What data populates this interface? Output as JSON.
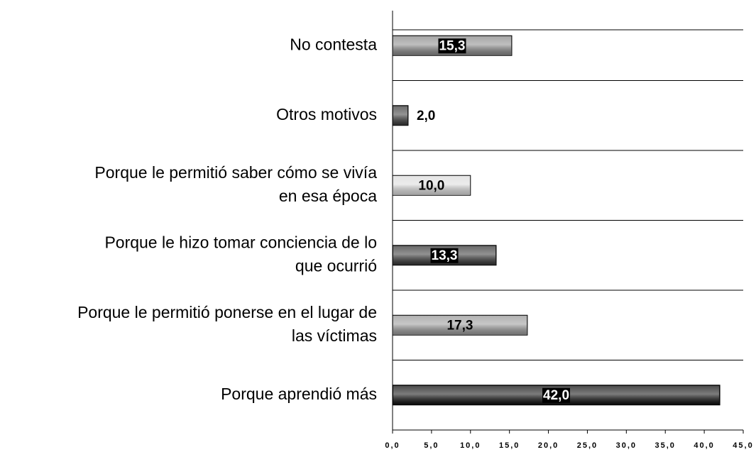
{
  "chart_data": {
    "type": "bar",
    "orientation": "horizontal",
    "categories": [
      [
        "No contesta"
      ],
      [
        "Otros motivos"
      ],
      [
        "Porque le permitió saber cómo se vivía",
        "en esa época"
      ],
      [
        "Porque le hizo tomar conciencia de lo",
        "que ocurrió"
      ],
      [
        "Porque le permitió ponerse en el lugar de",
        "las víctimas"
      ],
      [
        "Porque aprendió más"
      ]
    ],
    "values": [
      15.3,
      2.0,
      10.0,
      13.3,
      17.3,
      42.0
    ],
    "value_labels": [
      "15,3",
      "2,0",
      "10,0",
      "13,3",
      "17,3",
      "42,0"
    ],
    "colors": [
      "#8a8a8a",
      "#3c3c3c",
      "#dcdcdc",
      "#383838",
      "#9a9a9a",
      "#111111"
    ],
    "value_label_colors": [
      "#ffffff",
      "#000000",
      "#000000",
      "#ffffff",
      "#000000",
      "#ffffff"
    ],
    "xlim": [
      0,
      45
    ],
    "xticks": [
      {
        "value": 0,
        "label": "0,0"
      },
      {
        "value": 5,
        "label": "5,0"
      },
      {
        "value": 10,
        "label": "10,0"
      },
      {
        "value": 15,
        "label": "15,0"
      },
      {
        "value": 20,
        "label": "20,0"
      },
      {
        "value": 25,
        "label": "25,0"
      },
      {
        "value": 30,
        "label": "30,0"
      },
      {
        "value": 35,
        "label": "35,0"
      },
      {
        "value": 40,
        "label": "40,0"
      },
      {
        "value": 45,
        "label": "45,0"
      }
    ]
  }
}
